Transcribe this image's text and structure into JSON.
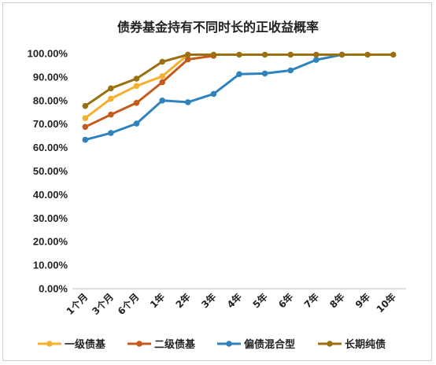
{
  "chart_data": {
    "type": "line",
    "title": "债券基金持有不同时长的正收益概率",
    "xlabel": "",
    "ylabel": "",
    "categories": [
      "1个月",
      "3个月",
      "6个月",
      "1年",
      "2年",
      "3年",
      "4年",
      "5年",
      "6年",
      "7年",
      "8年",
      "9年",
      "10年"
    ],
    "ylim": [
      0,
      100
    ],
    "yticks": [
      "0.00%",
      "10.00%",
      "20.00%",
      "30.00%",
      "40.00%",
      "50.00%",
      "60.00%",
      "70.00%",
      "80.00%",
      "90.00%",
      "100.00%"
    ],
    "legend_position": "bottom",
    "grid": false,
    "series": [
      {
        "name": "一级债基",
        "color": "#f5b12e",
        "values": [
          72.5,
          80.8,
          86.2,
          90.3,
          99.5,
          null,
          null,
          null,
          null,
          null,
          null,
          null,
          null
        ]
      },
      {
        "name": "二级债基",
        "color": "#c55a1b",
        "values": [
          68.8,
          74.0,
          79.0,
          87.8,
          97.5,
          99.0,
          null,
          null,
          null,
          null,
          null,
          null,
          null
        ]
      },
      {
        "name": "偏债混合型",
        "color": "#2e83bd",
        "values": [
          63.3,
          66.2,
          70.2,
          80.0,
          79.3,
          82.8,
          91.2,
          91.5,
          92.8,
          97.3,
          99.5,
          null,
          null
        ]
      },
      {
        "name": "长期纯债",
        "color": "#9b7011",
        "values": [
          77.7,
          85.2,
          89.3,
          96.5,
          99.5,
          99.5,
          99.5,
          99.5,
          99.5,
          99.5,
          99.5,
          99.5,
          99.5
        ]
      }
    ]
  }
}
